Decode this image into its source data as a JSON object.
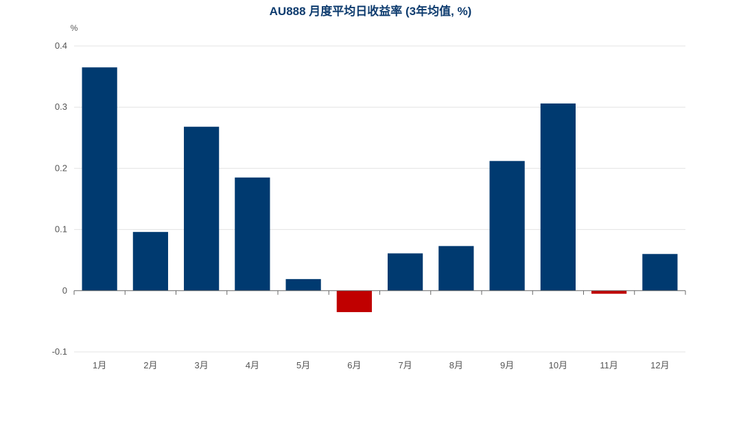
{
  "chart_data": {
    "type": "bar",
    "title": "AU888 月度平均日收益率 (3年均值, %)",
    "y_unit": "%",
    "categories": [
      "1月",
      "2月",
      "3月",
      "4月",
      "5月",
      "6月",
      "7月",
      "8月",
      "9月",
      "10月",
      "11月",
      "12月"
    ],
    "values": [
      0.365,
      0.096,
      0.268,
      0.185,
      0.019,
      -0.035,
      0.061,
      0.073,
      0.212,
      0.306,
      -0.005,
      0.06
    ],
    "ylim": [
      -0.1,
      0.4
    ],
    "yticks": [
      -0.1,
      0,
      0.1,
      0.2,
      0.3,
      0.4
    ],
    "ytick_labels": [
      "-0.1",
      "0",
      "0.1",
      "0.2",
      "0.3",
      "0.4"
    ],
    "grid": true,
    "colors": {
      "positive": "#003a70",
      "negative": "#c00000"
    }
  }
}
